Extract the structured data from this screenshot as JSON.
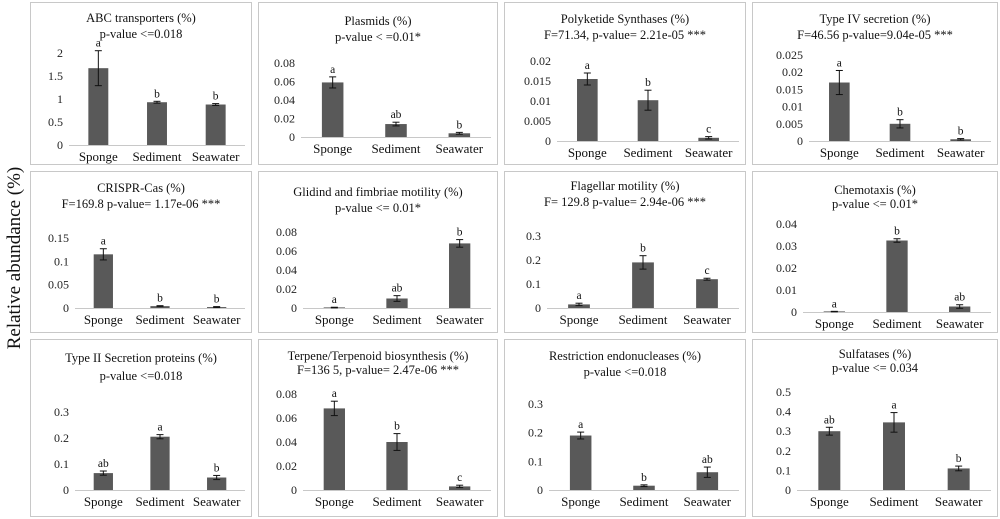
{
  "figure": {
    "ylabel": "Relative abundance (%)",
    "bar_color": "#595959"
  },
  "chart_data": [
    {
      "type": "bar",
      "title": "ABC transporters (%)",
      "subtitle": "p-value <=0.018",
      "categories": [
        "Sponge",
        "Sediment",
        "Seawater"
      ],
      "values": [
        1.67,
        0.93,
        0.88
      ],
      "errors": [
        0.38,
        0.02,
        0.02
      ],
      "letters": [
        "a",
        "b",
        "b"
      ],
      "ylim": [
        0,
        2
      ],
      "yticks": [
        0,
        0.5,
        1,
        1.5,
        2
      ],
      "yticklabels": [
        "0",
        "0.5",
        "1",
        "1.5",
        "2"
      ]
    },
    {
      "type": "bar",
      "title": "Plasmids (%)",
      "subtitle": "p-value < =0.01*",
      "categories": [
        "Sponge",
        "Sediment",
        "Seawater"
      ],
      "values": [
        0.059,
        0.014,
        0.004
      ],
      "errors": [
        0.006,
        0.002,
        0.001
      ],
      "letters": [
        "a",
        "ab",
        "b"
      ],
      "ylim": [
        0,
        0.08
      ],
      "yticks": [
        0,
        0.02,
        0.04,
        0.06,
        0.08
      ],
      "yticklabels": [
        "0",
        "0.02",
        "0.04",
        "0.06",
        "0.08"
      ]
    },
    {
      "type": "bar",
      "title": "Polyketide Synthases (%)",
      "subtitle": "F=71.34, p-value= 2.21e-05 ***",
      "categories": [
        "Sponge",
        "Sediment",
        "Seawater"
      ],
      "values": [
        0.0155,
        0.0102,
        0.0008
      ],
      "errors": [
        0.0015,
        0.0025,
        0.0003
      ],
      "letters": [
        "a",
        "b",
        "c"
      ],
      "ylim": [
        0,
        0.02
      ],
      "yticks": [
        0,
        0.005,
        0.01,
        0.015,
        0.02
      ],
      "yticklabels": [
        "0",
        "0.005",
        "0.01",
        "0.015",
        "0.02"
      ]
    },
    {
      "type": "bar",
      "title": "Type IV secretion (%)",
      "subtitle": "F=46.56 p-value=9.04e-05 ***",
      "categories": [
        "Sponge",
        "Sediment",
        "Seawater"
      ],
      "values": [
        0.017,
        0.005,
        0.0005
      ],
      "errors": [
        0.0035,
        0.0012,
        0.0002
      ],
      "letters": [
        "a",
        "b",
        "b"
      ],
      "ylim": [
        0,
        0.025
      ],
      "yticks": [
        0,
        0.005,
        0.01,
        0.015,
        0.02,
        0.025
      ],
      "yticklabels": [
        "0",
        "0.005",
        "0.01",
        "0.015",
        "0.02",
        "0.025"
      ]
    },
    {
      "type": "bar",
      "title": "CRISPR-Cas (%)",
      "subtitle": "F=169.8  p-value= 1.17e-06 ***",
      "categories": [
        "Sponge",
        "Sediment",
        "Seawater"
      ],
      "values": [
        0.115,
        0.004,
        0.002
      ],
      "errors": [
        0.012,
        0.001,
        0.001
      ],
      "letters": [
        "a",
        "b",
        "b"
      ],
      "ylim": [
        0,
        0.15
      ],
      "yticks": [
        0,
        0.05,
        0.1,
        0.15
      ],
      "yticklabels": [
        "0",
        "0.05",
        "0.1",
        "0.15"
      ]
    },
    {
      "type": "bar",
      "title": "Glidind and fimbriae motility (%)",
      "subtitle": "p-value <= 0.01*",
      "categories": [
        "Sponge",
        "Sediment",
        "Seawater"
      ],
      "values": [
        0.0005,
        0.01,
        0.068
      ],
      "errors": [
        0.0003,
        0.003,
        0.004
      ],
      "letters": [
        "a",
        "ab",
        "b"
      ],
      "ylim": [
        0,
        0.08
      ],
      "yticks": [
        0,
        0.02,
        0.04,
        0.06,
        0.08
      ],
      "yticklabels": [
        "0",
        "0.02",
        "0.04",
        "0.06",
        "0.08"
      ]
    },
    {
      "type": "bar",
      "title": "Flagellar motility (%)",
      "subtitle": "F= 129.8 p-value= 2.94e-06 ***",
      "categories": [
        "Sponge",
        "Sediment",
        "Seawater"
      ],
      "values": [
        0.015,
        0.19,
        0.12
      ],
      "errors": [
        0.005,
        0.028,
        0.004
      ],
      "letters": [
        "a",
        "b",
        "c"
      ],
      "ylim": [
        0,
        0.3
      ],
      "yticks": [
        0,
        0.1,
        0.2,
        0.3
      ],
      "yticklabels": [
        "0",
        "0.1",
        "0.2",
        "0.3"
      ]
    },
    {
      "type": "bar",
      "title": "Chemotaxis (%)",
      "subtitle": "p-value <= 0.01*",
      "categories": [
        "Sponge",
        "Sediment",
        "Seawater"
      ],
      "values": [
        0.0002,
        0.0325,
        0.0025
      ],
      "errors": [
        0.0001,
        0.0008,
        0.0008
      ],
      "letters": [
        "a",
        "b",
        "ab"
      ],
      "ylim": [
        0,
        0.04
      ],
      "yticks": [
        0,
        0.01,
        0.02,
        0.03,
        0.04
      ],
      "yticklabels": [
        "0",
        "0.01",
        "0.02",
        "0.03",
        "0.04"
      ]
    },
    {
      "type": "bar",
      "title": "Type II Secretion proteins (%)",
      "subtitle": "p-value <=0.018",
      "categories": [
        "Sponge",
        "Sediment",
        "Seawater"
      ],
      "values": [
        0.065,
        0.205,
        0.048
      ],
      "errors": [
        0.008,
        0.008,
        0.008
      ],
      "letters": [
        "ab",
        "a",
        "b"
      ],
      "ylim": [
        0,
        0.3
      ],
      "yticks": [
        0,
        0.1,
        0.2,
        0.3
      ],
      "yticklabels": [
        "0",
        "0.1",
        "0.2",
        "0.3"
      ]
    },
    {
      "type": "bar",
      "title": "Terpene/Terpenoid biosynthesis (%)",
      "subtitle": "F=136 5,  p-value= 2.47e-06 ***",
      "categories": [
        "Sponge",
        "Sediment",
        "Seawater"
      ],
      "values": [
        0.068,
        0.04,
        0.003
      ],
      "errors": [
        0.006,
        0.007,
        0.001
      ],
      "letters": [
        "a",
        "b",
        "c"
      ],
      "ylim": [
        0,
        0.08
      ],
      "yticks": [
        0,
        0.02,
        0.04,
        0.06,
        0.08
      ],
      "yticklabels": [
        "0",
        "0.02",
        "0.04",
        "0.06",
        "0.08"
      ]
    },
    {
      "type": "bar",
      "title": "Restriction endonucleases (%)",
      "subtitle": "p-value <=0.018",
      "categories": [
        "Sponge",
        "Sediment",
        "Seawater"
      ],
      "values": [
        0.19,
        0.015,
        0.062
      ],
      "errors": [
        0.012,
        0.003,
        0.018
      ],
      "letters": [
        "a",
        "b",
        "ab"
      ],
      "ylim": [
        0,
        0.3
      ],
      "yticks": [
        0,
        0.1,
        0.2,
        0.3
      ],
      "yticklabels": [
        "0",
        "0.1",
        "0.2",
        "0.3"
      ]
    },
    {
      "type": "bar",
      "title": "Sulfatases (%)",
      "subtitle": "p-value <= 0.034",
      "categories": [
        "Sponge",
        "Sediment",
        "Seawater"
      ],
      "values": [
        0.3,
        0.345,
        0.11
      ],
      "errors": [
        0.02,
        0.05,
        0.012
      ],
      "letters": [
        "ab",
        "a",
        "b"
      ],
      "ylim": [
        0,
        0.5
      ],
      "yticks": [
        0,
        0.1,
        0.2,
        0.3,
        0.4,
        0.5
      ],
      "yticklabels": [
        "0",
        "0.1",
        "0.2",
        "0.3",
        "0.4",
        "0.5"
      ]
    }
  ]
}
